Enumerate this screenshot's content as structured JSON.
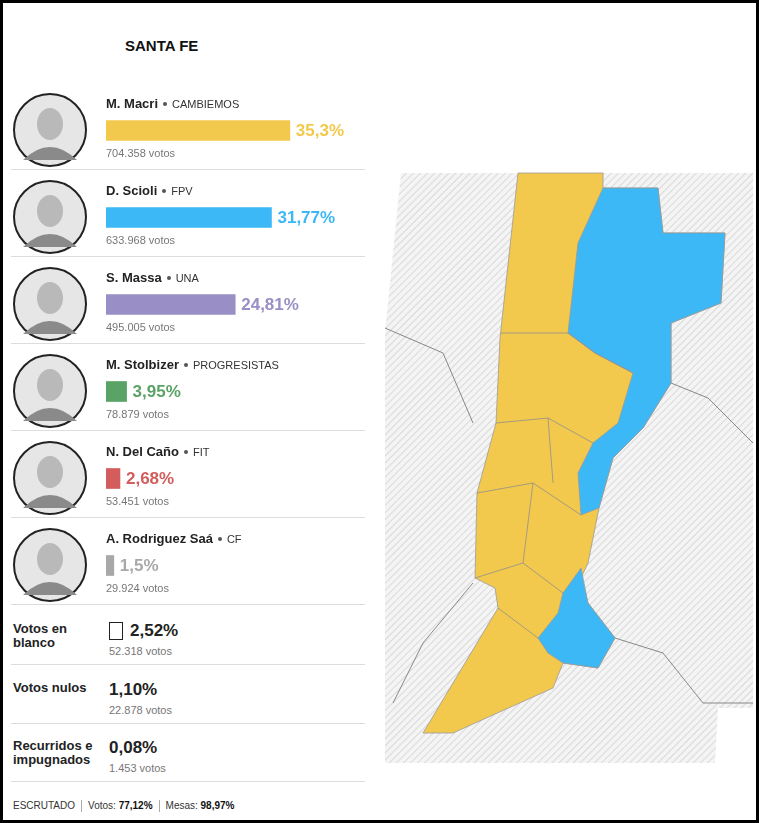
{
  "chart_data": {
    "type": "bar",
    "title": "SANTA FE",
    "orientation": "horizontal",
    "tick_labels": false,
    "grid": false,
    "data_labels": true,
    "categories": [
      "M. Macri",
      "D. Scioli",
      "S. Massa",
      "M. Stolbizer",
      "N. Del Caño",
      "A. Rodriguez Saá"
    ],
    "parties": [
      "CAMBIEMOS",
      "FPV",
      "UNA",
      "PROGRESISTAS",
      "FIT",
      "CF"
    ],
    "values": [
      35.3,
      31.77,
      24.81,
      3.95,
      2.68,
      1.5
    ],
    "value_labels": [
      "35,3%",
      "31,77%",
      "24,81%",
      "3,95%",
      "2,68%",
      "1,5%"
    ],
    "vote_labels": [
      "704.358 votos",
      "633.968 votos",
      "495.005 votos",
      "78.879 votos",
      "53.451 votos",
      "29.924 votos"
    ],
    "colors": [
      "#f2c94c",
      "#3bb8f5",
      "#9a8ec6",
      "#5aa367",
      "#d35c5c",
      "#a8a8a8"
    ],
    "xlim": [
      0,
      48
    ]
  },
  "other_votes": [
    {
      "label": "Votos en blanco",
      "value_label": "2,52%",
      "votes": "52.318 votos"
    },
    {
      "label": "Votos nulos",
      "value_label": "1,10%",
      "votes": "22.878 votos"
    },
    {
      "label": "Recurridos e impugnados",
      "value_label": "0,08%",
      "votes": "1.453 votos"
    }
  ],
  "footer": {
    "title": "ESCRUTADO",
    "items": [
      {
        "label": "Votos:",
        "value": "77,12%"
      },
      {
        "label": "Mesas:",
        "value": "98,97%"
      }
    ]
  },
  "map": {
    "regions": [
      {
        "winner": "M. Macri"
      },
      {
        "winner": "D. Scioli"
      },
      {
        "winner": "D. Scioli"
      }
    ]
  }
}
